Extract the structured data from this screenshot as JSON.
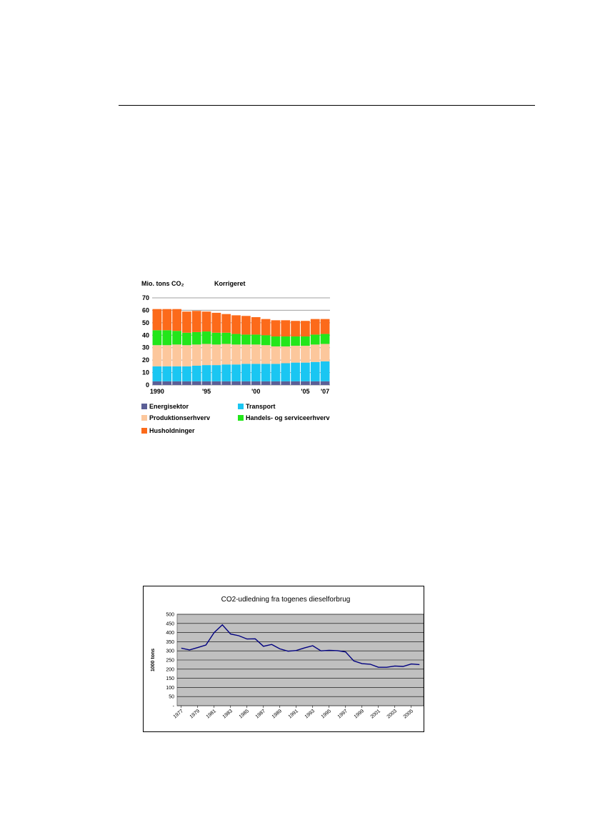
{
  "chart_data": [
    {
      "type": "bar",
      "stacked": true,
      "title_left": "Mio. tons CO₂",
      "title_right": "Korrigeret",
      "ylim": [
        0,
        70
      ],
      "yticks": [
        0,
        10,
        20,
        30,
        40,
        50,
        60,
        70
      ],
      "categories": [
        "1990",
        "1991",
        "1992",
        "1993",
        "1994",
        "1995",
        "1996",
        "1997",
        "1998",
        "1999",
        "2000",
        "2001",
        "2002",
        "2003",
        "2004",
        "2005",
        "2006",
        "2007"
      ],
      "tick_labels": [
        {
          "category": "1990",
          "label": "1990"
        },
        {
          "category": "1995",
          "label": "'95"
        },
        {
          "category": "2000",
          "label": "'00"
        },
        {
          "category": "2005",
          "label": "'05"
        },
        {
          "category": "2007",
          "label": "'07"
        }
      ],
      "grid": true,
      "legend": "bottom",
      "series": [
        {
          "name": "Energisektor",
          "color": "#5b5f96",
          "values": [
            3,
            3,
            3,
            3,
            3,
            3,
            3,
            3,
            3,
            3,
            3,
            3,
            3,
            3,
            3,
            3,
            3,
            3
          ]
        },
        {
          "name": "Transport",
          "color": "#1ac6f2",
          "values": [
            12,
            12,
            12,
            12,
            12.5,
            13,
            13,
            13.5,
            13.5,
            14,
            14,
            14,
            14,
            14.5,
            15,
            15,
            15.5,
            16
          ]
        },
        {
          "name": "Produktionserhverv",
          "color": "#fcc79c",
          "values": [
            17,
            17,
            17.5,
            17,
            17,
            17,
            16.5,
            16.5,
            16,
            15.5,
            15.5,
            15,
            14,
            13.5,
            13.5,
            13.5,
            14,
            14
          ]
        },
        {
          "name": "Handels- og serviceerhverv",
          "color": "#22e61a",
          "values": [
            12,
            12,
            11,
            10,
            10,
            10,
            9.5,
            9,
            8.5,
            8,
            8,
            8,
            8,
            8,
            7.5,
            7.5,
            8,
            8
          ]
        },
        {
          "name": "Husholdninger",
          "color": "#fc6a1a",
          "values": [
            17,
            17,
            17.5,
            17,
            17,
            16,
            16,
            15,
            15,
            15,
            14,
            13,
            13,
            13,
            12.5,
            12.5,
            12.5,
            12
          ]
        }
      ]
    },
    {
      "type": "line",
      "title": "CO2-udledning fra togenes dieselforbrug",
      "ylabel": "1000 tons",
      "ylim": [
        0,
        500
      ],
      "yticks": [
        0,
        50,
        100,
        150,
        200,
        250,
        300,
        350,
        400,
        450,
        500
      ],
      "ytick_labels": [
        "-",
        "50",
        "100",
        "150",
        "200",
        "250",
        "300",
        "350",
        "400",
        "450",
        "500"
      ],
      "x_tick_labels": [
        "1977",
        "1979",
        "1981",
        "1983",
        "1985",
        "1987",
        "1989",
        "1991",
        "1993",
        "1995",
        "1997",
        "1999",
        "2001",
        "2003",
        "2005"
      ],
      "grid": true,
      "background": "#c0c0c0",
      "series": [
        {
          "name": "",
          "color": "#000080",
          "x": [
            1977,
            1978,
            1979,
            1980,
            1981,
            1982,
            1983,
            1984,
            1985,
            1986,
            1987,
            1988,
            1989,
            1990,
            1991,
            1992,
            1993,
            1994,
            1995,
            1996,
            1997,
            1998,
            1999,
            2000,
            2001,
            2002,
            2003,
            2004,
            2005,
            2006
          ],
          "values": [
            315,
            305,
            318,
            332,
            400,
            442,
            392,
            383,
            365,
            366,
            325,
            335,
            311,
            298,
            302,
            316,
            328,
            300,
            303,
            301,
            294,
            245,
            230,
            227,
            210,
            210,
            217,
            215,
            228,
            225
          ]
        }
      ]
    }
  ]
}
